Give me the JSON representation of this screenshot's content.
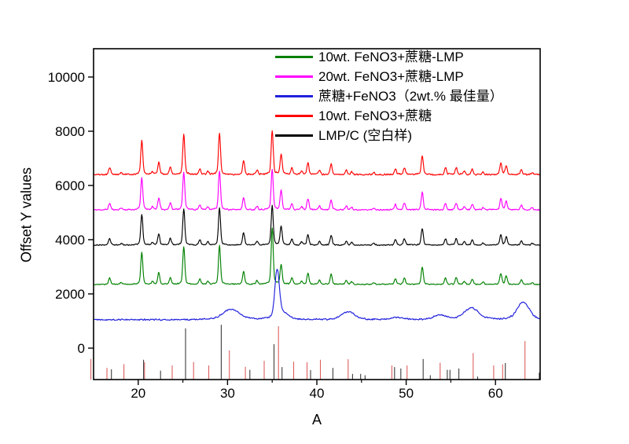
{
  "figure": {
    "background": "#ffffff"
  },
  "axes": {
    "x": {
      "label": "A",
      "major_ticks": [
        20,
        30,
        40,
        50,
        60
      ],
      "minor_ticks": [
        25,
        35,
        45,
        55
      ]
    },
    "y": {
      "label": "Offset Y values",
      "major_ticks": [
        0,
        2000,
        4000,
        6000,
        8000,
        10000
      ]
    }
  },
  "legend": {
    "items": [
      {
        "label": "10wt. FeNO3+蔗糖-LMP",
        "color": "#008000"
      },
      {
        "label": "20wt. FeNO3+蔗糖-LMP",
        "color": "#ff00ff"
      },
      {
        "label": "蔗糖+FeNO3（2wt.% 最佳量）",
        "color": "#2020dd"
      },
      {
        "label": "10wt. FeNO3+蔗糖",
        "color": "#ff0000"
      },
      {
        "label": "LMP/C (空白样)",
        "color": "#000000"
      }
    ]
  },
  "chart_data": {
    "type": "line",
    "title": "",
    "xlabel": "A",
    "ylabel": "Offset Y values",
    "xlim": [
      15,
      65
    ],
    "ylim": [
      -1200,
      11000
    ],
    "grid": false,
    "legend_position": "top-inside",
    "description": "Five XRD-style diffraction traces offset vertically plus two reference stick patterns along the bottom axis",
    "crystalline_peaks": [
      [
        16.8,
        0.17
      ],
      [
        18.1,
        0.05
      ],
      [
        20.4,
        0.82
      ],
      [
        21.6,
        0.07
      ],
      [
        22.3,
        0.3
      ],
      [
        23.6,
        0.18
      ],
      [
        25.1,
        0.97
      ],
      [
        26.9,
        0.13
      ],
      [
        27.8,
        0.08
      ],
      [
        29.1,
        1.0
      ],
      [
        31.8,
        0.33
      ],
      [
        33.3,
        0.1
      ],
      [
        35.0,
        1.05
      ],
      [
        36.0,
        0.5
      ],
      [
        37.2,
        0.16
      ],
      [
        38.3,
        0.08
      ],
      [
        39.0,
        0.28
      ],
      [
        40.3,
        0.1
      ],
      [
        41.6,
        0.26
      ],
      [
        43.3,
        0.1
      ],
      [
        43.9,
        0.07
      ],
      [
        46.4,
        0.05
      ],
      [
        48.8,
        0.14
      ],
      [
        49.8,
        0.17
      ],
      [
        51.8,
        0.45
      ],
      [
        54.4,
        0.17
      ],
      [
        55.6,
        0.17
      ],
      [
        56.5,
        0.08
      ],
      [
        57.4,
        0.14
      ],
      [
        58.6,
        0.06
      ],
      [
        60.6,
        0.28
      ],
      [
        61.2,
        0.22
      ],
      [
        62.9,
        0.12
      ],
      [
        64.1,
        0.05
      ]
    ],
    "series": [
      {
        "name": "20wt. FeNO3+蔗糖-LMP",
        "color": "#ff00ff",
        "kind": "crystalline",
        "offset": 5100,
        "amp": 1400,
        "noise": 30,
        "seed": 11
      },
      {
        "name": "10wt. FeNO3+蔗糖",
        "color": "#ff0000",
        "kind": "crystalline",
        "offset": 6400,
        "amp": 1500,
        "noise": 35,
        "seed": 5
      },
      {
        "name": "LMP/C (空白样)",
        "color": "#000000",
        "kind": "crystalline",
        "offset": 3800,
        "amp": 1350,
        "noise": 25,
        "seed": 23
      },
      {
        "name": "10wt. FeNO3+蔗糖-LMP",
        "color": "#008000",
        "kind": "crystalline",
        "offset": 2350,
        "amp": 1400,
        "noise": 25,
        "seed": 17,
        "boosts": {
          "35.0": 1.45
        }
      },
      {
        "name": "蔗糖+FeNO3（2wt.% 最佳量）",
        "color": "#2020dd",
        "kind": "amorphous",
        "offset": 1050,
        "noise": 33,
        "seed": 41,
        "bumps": [
          [
            30.4,
            380,
            0.9
          ],
          [
            35.55,
            1750,
            0.24
          ],
          [
            36.2,
            200,
            0.6
          ],
          [
            43.5,
            300,
            0.7
          ],
          [
            49.0,
            90,
            0.6
          ],
          [
            53.8,
            160,
            0.7
          ],
          [
            57.3,
            430,
            0.8
          ],
          [
            63.1,
            640,
            0.65
          ]
        ]
      }
    ],
    "reference_sticks": {
      "bottom": -1159,
      "red": {
        "color": "#dd5f5f",
        "points": [
          [
            14.7,
            -400
          ],
          [
            16.5,
            -730
          ],
          [
            18.4,
            -590
          ],
          [
            20.7,
            -520
          ],
          [
            23.8,
            -640
          ],
          [
            26.2,
            -510
          ],
          [
            27.9,
            -640
          ],
          [
            30.2,
            -80
          ],
          [
            32.0,
            -690
          ],
          [
            34.1,
            -470
          ],
          [
            35.7,
            810
          ],
          [
            37.4,
            -500
          ],
          [
            38.9,
            -520
          ],
          [
            40.4,
            -430
          ],
          [
            43.5,
            -410
          ],
          [
            48.4,
            -640
          ],
          [
            50.1,
            -640
          ],
          [
            53.8,
            -540
          ],
          [
            57.5,
            -180
          ],
          [
            59.8,
            -640
          ],
          [
            60.8,
            -600
          ],
          [
            63.3,
            260
          ]
        ]
      },
      "black": {
        "color": "#3d3d3d",
        "points": [
          [
            17.0,
            -780
          ],
          [
            20.6,
            -430
          ],
          [
            22.5,
            -830
          ],
          [
            25.3,
            730
          ],
          [
            29.3,
            860
          ],
          [
            32.5,
            -800
          ],
          [
            35.2,
            145
          ],
          [
            36.1,
            -700
          ],
          [
            39.3,
            -810
          ],
          [
            41.8,
            -730
          ],
          [
            44.0,
            -950
          ],
          [
            44.9,
            -950
          ],
          [
            45.4,
            -1000
          ],
          [
            48.7,
            -700
          ],
          [
            49.4,
            -750
          ],
          [
            51.9,
            -400
          ],
          [
            52.7,
            -1000
          ],
          [
            54.6,
            -800
          ],
          [
            54.9,
            -800
          ],
          [
            55.9,
            -750
          ],
          [
            58.0,
            -1050
          ],
          [
            61.1,
            -550
          ],
          [
            64.9,
            -900
          ]
        ]
      }
    }
  }
}
